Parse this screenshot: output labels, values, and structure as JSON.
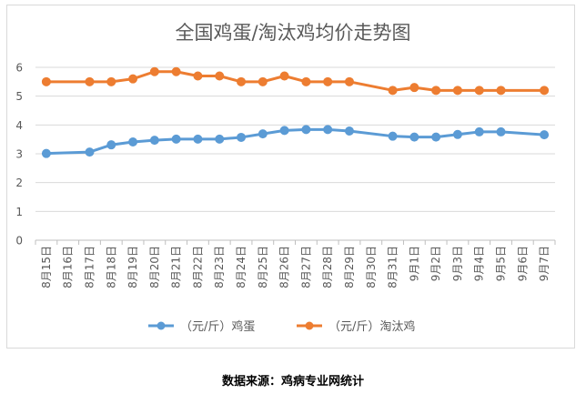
{
  "chart_data": {
    "type": "line",
    "title": "全国鸡蛋/淘汰鸡均价走势图",
    "xlabel": "",
    "ylabel": "",
    "ylim": [
      0,
      6
    ],
    "yticks": [
      "0",
      "1",
      "2",
      "3",
      "4",
      "5",
      "6"
    ],
    "grid": true,
    "legend_position": "bottom",
    "categories": [
      "8月15日",
      "8月16日",
      "8月17日",
      "8月18日",
      "8月19日",
      "8月20日",
      "8月21日",
      "8月22日",
      "8月23日",
      "8月24日",
      "8月25日",
      "8月26日",
      "8月27日",
      "8月28日",
      "8月29日",
      "8月30日",
      "8月31日",
      "9月1日",
      "9月2日",
      "9月3日",
      "9月4日",
      "9月5日",
      "9月6日",
      "9月7日"
    ],
    "series": [
      {
        "name": "（元/斤）鸡蛋",
        "color": "#5b9bd5",
        "values": [
          3.01,
          null,
          3.06,
          3.31,
          3.41,
          3.47,
          3.51,
          3.51,
          3.51,
          3.57,
          3.69,
          3.81,
          3.84,
          3.84,
          3.79,
          null,
          3.61,
          3.58,
          3.58,
          3.67,
          3.76,
          3.76,
          null,
          3.66
        ]
      },
      {
        "name": "（元/斤）淘汰鸡",
        "color": "#ed7d31",
        "values": [
          5.5,
          null,
          5.5,
          5.5,
          5.6,
          5.85,
          5.85,
          5.7,
          5.7,
          5.5,
          5.5,
          5.7,
          5.5,
          5.5,
          5.5,
          null,
          5.2,
          5.3,
          5.2,
          5.2,
          5.2,
          5.2,
          null,
          5.2
        ]
      }
    ]
  },
  "source": "数据来源：鸡病专业网统计"
}
